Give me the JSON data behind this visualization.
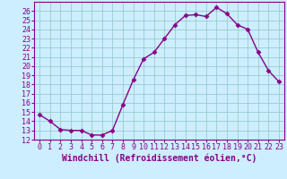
{
  "x": [
    0,
    1,
    2,
    3,
    4,
    5,
    6,
    7,
    8,
    9,
    10,
    11,
    12,
    13,
    14,
    15,
    16,
    17,
    18,
    19,
    20,
    21,
    22,
    23
  ],
  "y": [
    14.7,
    14.0,
    13.1,
    13.0,
    13.0,
    12.5,
    12.5,
    13.0,
    15.8,
    18.5,
    20.8,
    21.5,
    23.0,
    24.5,
    25.5,
    25.6,
    25.4,
    26.4,
    25.7,
    24.5,
    24.0,
    21.5,
    19.5,
    18.3
  ],
  "line_color": "#880088",
  "marker": "D",
  "marker_size": 2.5,
  "bg_color": "#cceeff",
  "grid_color": "#99cccc",
  "xlabel": "Windchill (Refroidissement éolien,°C)",
  "xlabel_fontsize": 7,
  "ylim": [
    12,
    27
  ],
  "xlim": [
    -0.5,
    23.5
  ],
  "yticks": [
    12,
    13,
    14,
    15,
    16,
    17,
    18,
    19,
    20,
    21,
    22,
    23,
    24,
    25,
    26
  ],
  "xticks": [
    0,
    1,
    2,
    3,
    4,
    5,
    6,
    7,
    8,
    9,
    10,
    11,
    12,
    13,
    14,
    15,
    16,
    17,
    18,
    19,
    20,
    21,
    22,
    23
  ],
  "tick_fontsize": 6,
  "line_width": 1.0
}
